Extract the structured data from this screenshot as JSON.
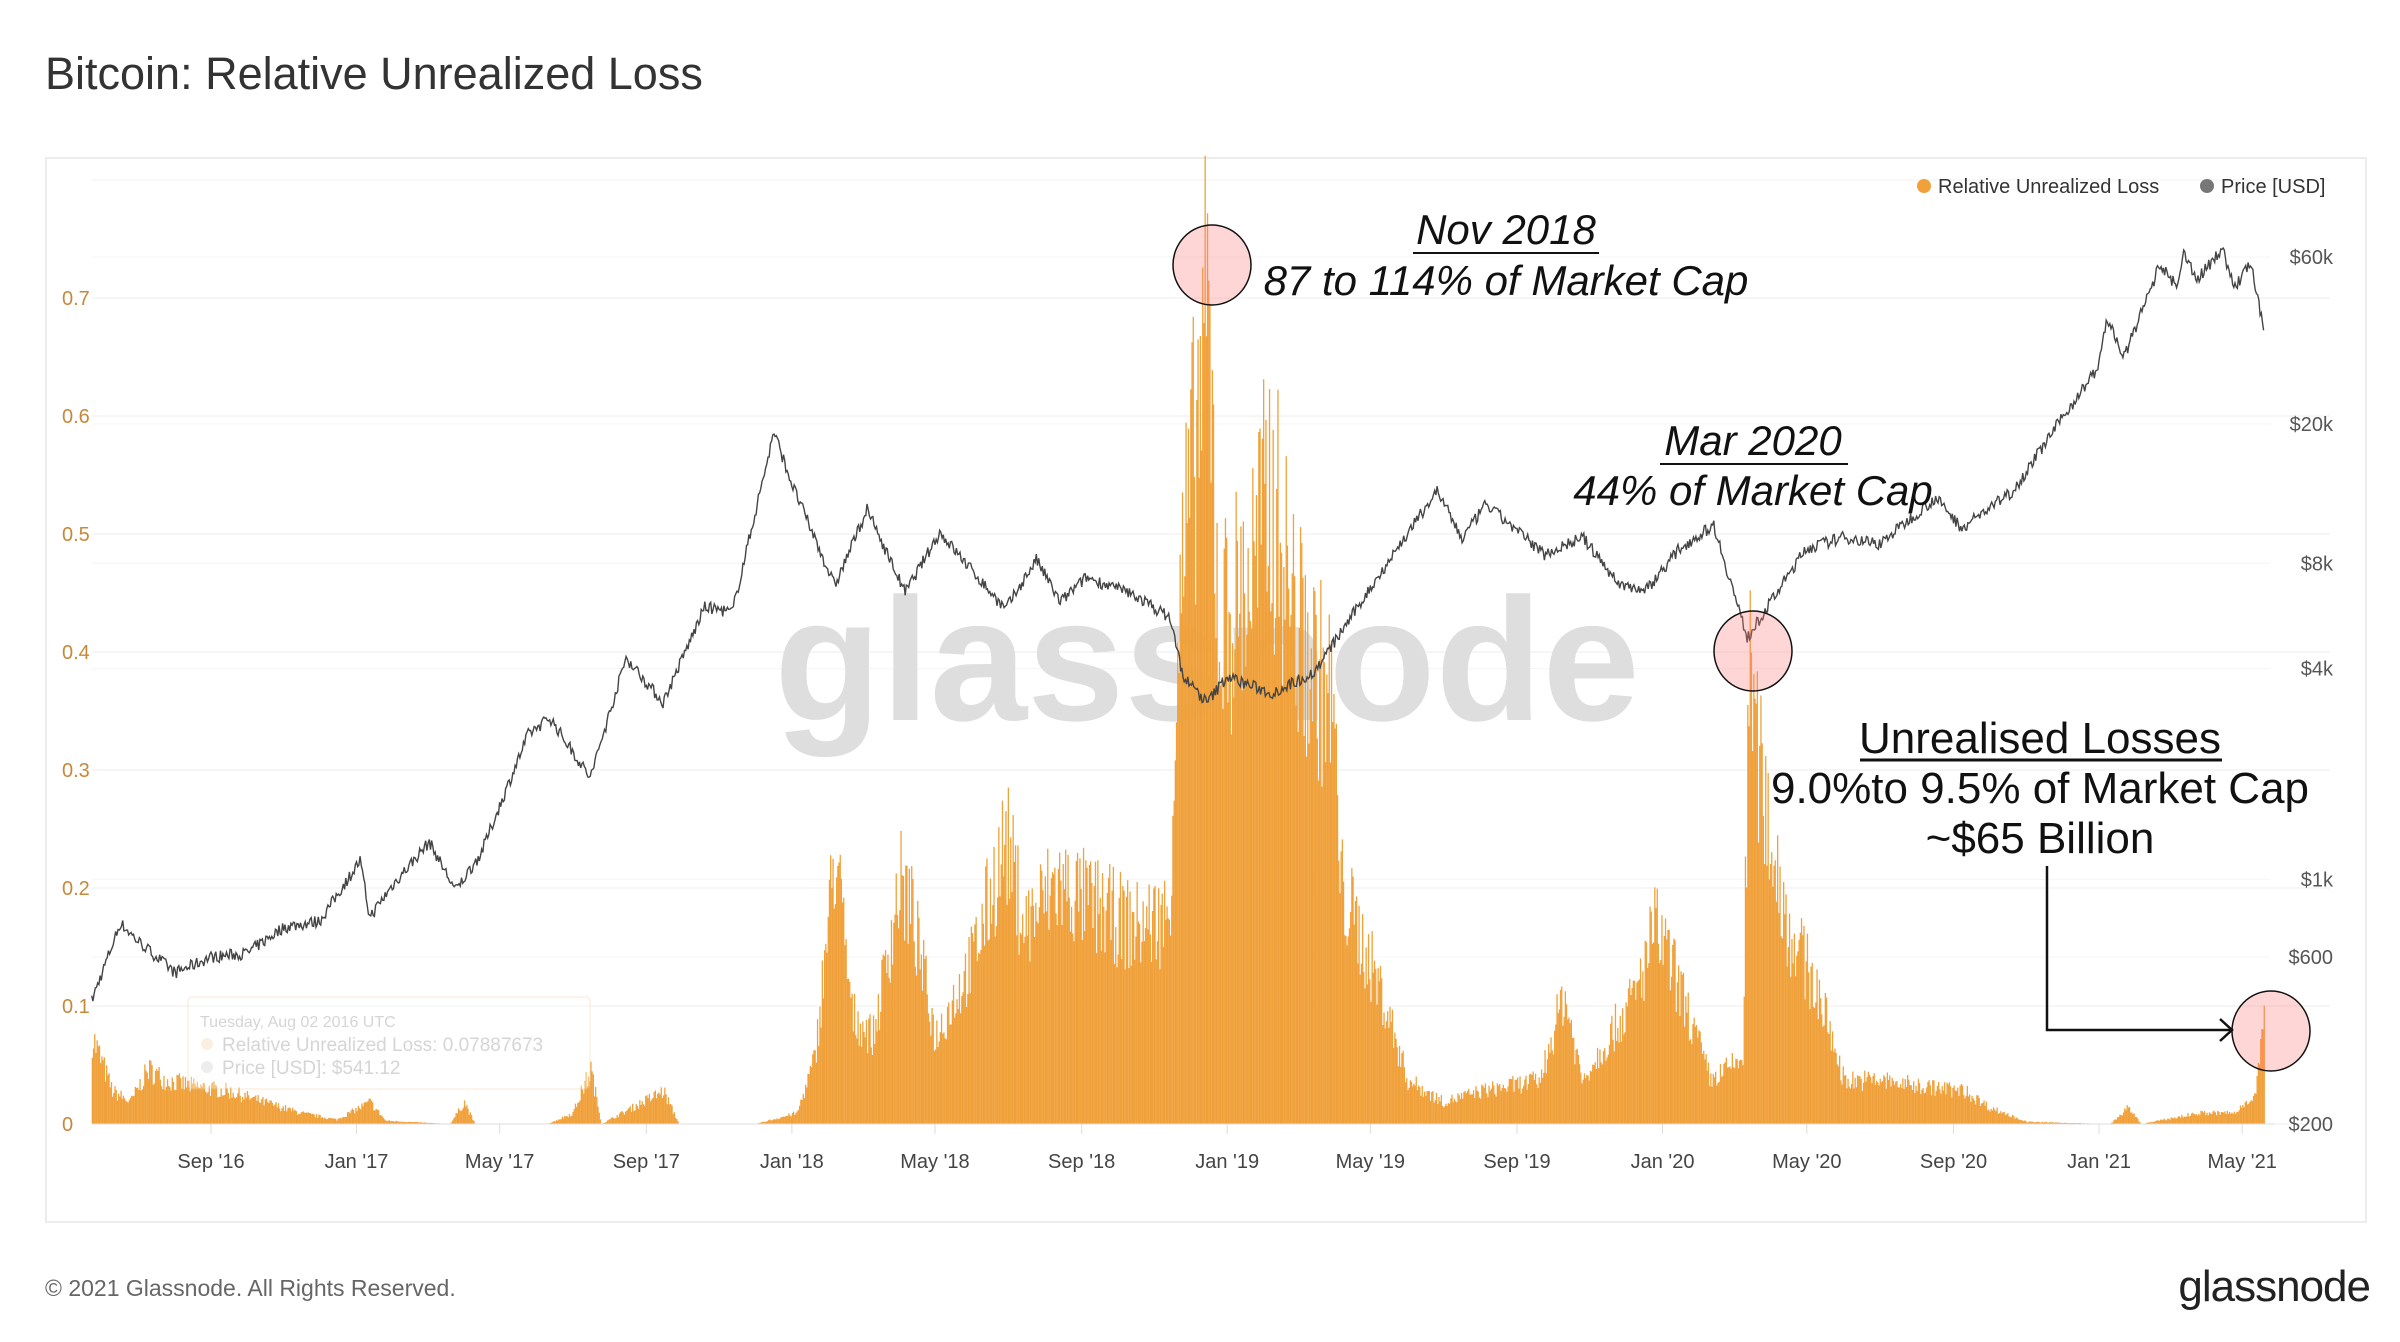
{
  "title": "Bitcoin: Relative Unrealized Loss",
  "footer": {
    "copyright": "© 2021 Glassnode. All Rights Reserved.",
    "logo": "glassnode"
  },
  "watermark": "glassnode",
  "legend": [
    {
      "label": "Relative Unrealized Loss",
      "color": "#f0a13a"
    },
    {
      "label": "Price [USD]",
      "color": "#777777"
    }
  ],
  "tooltip": {
    "date": "Tuesday, Aug 02 2016 UTC",
    "loss": "Relative Unrealized Loss: 0.07887673",
    "price": "Price [USD]: $541.12"
  },
  "annotations": [
    {
      "title": "Nov 2018",
      "text": "87 to 114% of Market Cap"
    },
    {
      "title": "Mar 2020",
      "text": "44% of Market Cap"
    },
    {
      "title": "Unrealised Losses",
      "text": "9.0%to 9.5% of Market Cap",
      "text2": "~$65 Billion"
    }
  ],
  "chart_data": {
    "type": "bar",
    "title": "Bitcoin: Relative Unrealized Loss",
    "x_range": [
      "2016-05-24",
      "2021-05-19"
    ],
    "x_ticks": [
      "Sep '16",
      "Jan '17",
      "May '17",
      "Sep '17",
      "Jan '18",
      "May '18",
      "Sep '18",
      "Jan '19",
      "May '19",
      "Sep '19",
      "Jan '20",
      "May '20",
      "Sep '20",
      "Jan '21",
      "May '21"
    ],
    "y_left": {
      "ticks": [
        "0",
        "0.1",
        "0.2",
        "0.3",
        "0.4",
        "0.5",
        "0.6",
        "0.7"
      ],
      "range": [
        0,
        0.8
      ]
    },
    "y_right": {
      "scale": "log",
      "ticks": [
        "$200",
        "$600",
        "$1k",
        "$4k",
        "$8k",
        "$20k",
        "$60k"
      ],
      "range": [
        200,
        60000
      ]
    },
    "grid": true,
    "legend_position": "top-right",
    "series": [
      {
        "name": "Relative Unrealized Loss",
        "type": "bar",
        "axis": "left",
        "color": "#f0a13a",
        "points": [
          [
            "2016-05-24",
            0.08
          ],
          [
            "2016-06-10",
            0.03
          ],
          [
            "2016-06-25",
            0.02
          ],
          [
            "2016-07-10",
            0.05
          ],
          [
            "2016-07-25",
            0.04
          ],
          [
            "2016-08-15",
            0.035
          ],
          [
            "2016-09-15",
            0.03
          ],
          [
            "2016-10-15",
            0.02
          ],
          [
            "2016-11-15",
            0.01
          ],
          [
            "2016-12-15",
            0.004
          ],
          [
            "2017-01-12",
            0.02
          ],
          [
            "2017-01-25",
            0.003
          ],
          [
            "2017-03-20",
            0.0
          ],
          [
            "2017-04-01",
            0.02
          ],
          [
            "2017-04-10",
            0.0
          ],
          [
            "2017-06-10",
            0.0
          ],
          [
            "2017-07-01",
            0.01
          ],
          [
            "2017-07-16",
            0.05
          ],
          [
            "2017-07-25",
            0.0
          ],
          [
            "2017-09-15",
            0.03
          ],
          [
            "2017-09-28",
            0.0
          ],
          [
            "2017-12-01",
            0.0
          ],
          [
            "2018-01-05",
            0.01
          ],
          [
            "2018-01-20",
            0.06
          ],
          [
            "2018-02-06",
            0.25
          ],
          [
            "2018-02-20",
            0.1
          ],
          [
            "2018-03-10",
            0.08
          ],
          [
            "2018-04-01",
            0.22
          ],
          [
            "2018-04-10",
            0.2
          ],
          [
            "2018-05-01",
            0.08
          ],
          [
            "2018-06-01",
            0.15
          ],
          [
            "2018-06-29",
            0.26
          ],
          [
            "2018-07-15",
            0.18
          ],
          [
            "2018-08-10",
            0.22
          ],
          [
            "2018-09-10",
            0.2
          ],
          [
            "2018-10-15",
            0.18
          ],
          [
            "2018-11-13",
            0.19
          ],
          [
            "2018-11-20",
            0.45
          ],
          [
            "2018-12-15",
            0.74
          ],
          [
            "2018-12-25",
            0.45
          ],
          [
            "2019-01-20",
            0.5
          ],
          [
            "2019-02-06",
            0.58
          ],
          [
            "2019-03-01",
            0.45
          ],
          [
            "2019-03-31",
            0.38
          ],
          [
            "2019-04-05",
            0.22
          ],
          [
            "2019-05-10",
            0.12
          ],
          [
            "2019-06-01",
            0.04
          ],
          [
            "2019-07-01",
            0.02
          ],
          [
            "2019-08-01",
            0.03
          ],
          [
            "2019-09-20",
            0.04
          ],
          [
            "2019-10-10",
            0.12
          ],
          [
            "2019-10-25",
            0.04
          ],
          [
            "2019-12-10",
            0.12
          ],
          [
            "2019-12-25",
            0.18
          ],
          [
            "2020-01-10",
            0.14
          ],
          [
            "2020-02-10",
            0.04
          ],
          [
            "2020-03-08",
            0.06
          ],
          [
            "2020-03-13",
            0.41
          ],
          [
            "2020-03-25",
            0.3
          ],
          [
            "2020-04-15",
            0.18
          ],
          [
            "2020-05-10",
            0.12
          ],
          [
            "2020-06-01",
            0.04
          ],
          [
            "2020-07-01",
            0.04
          ],
          [
            "2020-08-01",
            0.035
          ],
          [
            "2020-09-10",
            0.03
          ],
          [
            "2020-10-01",
            0.015
          ],
          [
            "2020-11-01",
            0.002
          ],
          [
            "2021-01-10",
            0.0
          ],
          [
            "2021-01-25",
            0.015
          ],
          [
            "2021-02-05",
            0.0
          ],
          [
            "2021-03-25",
            0.01
          ],
          [
            "2021-04-25",
            0.01
          ],
          [
            "2021-05-12",
            0.03
          ],
          [
            "2021-05-19",
            0.095
          ]
        ]
      },
      {
        "name": "Price [USD]",
        "type": "line",
        "axis": "right",
        "color": "#555555",
        "points": [
          [
            "2016-05-24",
            450
          ],
          [
            "2016-06-17",
            750
          ],
          [
            "2016-07-01",
            670
          ],
          [
            "2016-08-02",
            541
          ],
          [
            "2016-09-01",
            600
          ],
          [
            "2016-10-01",
            615
          ],
          [
            "2016-11-01",
            730
          ],
          [
            "2016-12-01",
            760
          ],
          [
            "2017-01-04",
            1130
          ],
          [
            "2017-01-12",
            780
          ],
          [
            "2017-02-01",
            970
          ],
          [
            "2017-03-03",
            1280
          ],
          [
            "2017-03-25",
            930
          ],
          [
            "2017-04-15",
            1180
          ],
          [
            "2017-05-25",
            2600
          ],
          [
            "2017-06-12",
            2900
          ],
          [
            "2017-07-16",
            1950
          ],
          [
            "2017-08-15",
            4300
          ],
          [
            "2017-09-15",
            3200
          ],
          [
            "2017-10-20",
            6000
          ],
          [
            "2017-11-12",
            5800
          ],
          [
            "2017-12-17",
            19000
          ],
          [
            "2018-01-01",
            13500
          ],
          [
            "2018-02-06",
            6900
          ],
          [
            "2018-03-05",
            11400
          ],
          [
            "2018-04-06",
            6600
          ],
          [
            "2018-05-05",
            9800
          ],
          [
            "2018-06-29",
            5900
          ],
          [
            "2018-07-25",
            8200
          ],
          [
            "2018-08-14",
            6200
          ],
          [
            "2018-09-05",
            7300
          ],
          [
            "2018-10-15",
            6500
          ],
          [
            "2018-11-14",
            5600
          ],
          [
            "2018-11-25",
            3800
          ],
          [
            "2018-12-15",
            3200
          ],
          [
            "2019-01-01",
            3800
          ],
          [
            "2019-02-07",
            3400
          ],
          [
            "2019-03-15",
            3900
          ],
          [
            "2019-04-05",
            5000
          ],
          [
            "2019-05-15",
            8000
          ],
          [
            "2019-06-26",
            12900
          ],
          [
            "2019-07-17",
            9400
          ],
          [
            "2019-08-06",
            11800
          ],
          [
            "2019-09-24",
            8500
          ],
          [
            "2019-10-26",
            9500
          ],
          [
            "2019-11-25",
            7000
          ],
          [
            "2019-12-18",
            6700
          ],
          [
            "2020-01-15",
            8800
          ],
          [
            "2020-02-13",
            10300
          ],
          [
            "2020-03-12",
            4900
          ],
          [
            "2020-04-30",
            8800
          ],
          [
            "2020-06-01",
            9500
          ],
          [
            "2020-07-01",
            9100
          ],
          [
            "2020-08-17",
            12300
          ],
          [
            "2020-09-08",
            10100
          ],
          [
            "2020-10-21",
            12900
          ],
          [
            "2020-11-24",
            19200
          ],
          [
            "2020-12-31",
            29000
          ],
          [
            "2021-01-08",
            40000
          ],
          [
            "2021-01-22",
            31000
          ],
          [
            "2021-02-21",
            57000
          ],
          [
            "2021-03-08",
            49000
          ],
          [
            "2021-03-13",
            61000
          ],
          [
            "2021-03-25",
            52000
          ],
          [
            "2021-04-14",
            63500
          ],
          [
            "2021-04-25",
            49000
          ],
          [
            "2021-05-08",
            58000
          ],
          [
            "2021-05-19",
            37000
          ]
        ]
      }
    ]
  }
}
